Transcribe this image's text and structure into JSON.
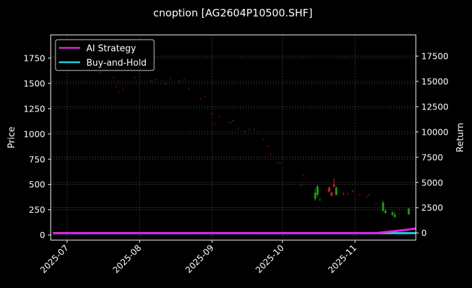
{
  "chart_data": {
    "type": "candlestick+line",
    "title": "cnoption [AG2604P10500.SHF]",
    "xlabel": "",
    "ylabel": "Price",
    "ylabel_right": "Return",
    "x_ticks": [
      "2025-07",
      "2025-08",
      "2025-09",
      "2025-10",
      "2025-11"
    ],
    "y_ticks_left": [
      0,
      250,
      500,
      750,
      1000,
      1250,
      1500,
      1750
    ],
    "y_ticks_right": [
      0,
      2500,
      5000,
      7500,
      10000,
      12500,
      15000,
      17500
    ],
    "ylim_left": [
      -50,
      1980
    ],
    "ylim_right": [
      -700,
      19600
    ],
    "grid": true,
    "legend_position": "upper left",
    "legend": [
      {
        "label": "AI Strategy",
        "color": "#e81ee8"
      },
      {
        "label": "Buy-and-Hold",
        "color": "#22d3e6"
      }
    ],
    "colors": {
      "up": "#18a018",
      "down": "#e01818",
      "background": "#000000",
      "grid": "#555555"
    },
    "candles": [
      {
        "date": "2025-07-15",
        "open": 1610,
        "high": 1620,
        "low": 1600,
        "close": 1605,
        "dir": "down"
      },
      {
        "date": "2025-07-21",
        "open": 1560,
        "high": 1565,
        "low": 1550,
        "close": 1555,
        "dir": "down"
      },
      {
        "date": "2025-07-22",
        "open": 1470,
        "high": 1480,
        "low": 1460,
        "close": 1465,
        "dir": "down"
      },
      {
        "date": "2025-07-23",
        "open": 1420,
        "high": 1430,
        "low": 1410,
        "close": 1415,
        "dir": "down"
      },
      {
        "date": "2025-07-25",
        "open": 1440,
        "high": 1450,
        "low": 1430,
        "close": 1435,
        "dir": "down"
      },
      {
        "date": "2025-07-28",
        "open": 1640,
        "high": 1650,
        "low": 1630,
        "close": 1635,
        "dir": "down"
      },
      {
        "date": "2025-07-30",
        "open": 1560,
        "high": 1570,
        "low": 1550,
        "close": 1555,
        "dir": "down"
      },
      {
        "date": "2025-08-01",
        "open": 1600,
        "high": 1610,
        "low": 1590,
        "close": 1595,
        "dir": "down"
      },
      {
        "date": "2025-08-06",
        "open": 1520,
        "high": 1530,
        "low": 1510,
        "close": 1515,
        "dir": "down"
      },
      {
        "date": "2025-08-08",
        "open": 1540,
        "high": 1550,
        "low": 1530,
        "close": 1535,
        "dir": "down"
      },
      {
        "date": "2025-08-12",
        "open": 1500,
        "high": 1510,
        "low": 1490,
        "close": 1495,
        "dir": "down"
      },
      {
        "date": "2025-08-14",
        "open": 1550,
        "high": 1560,
        "low": 1540,
        "close": 1545,
        "dir": "down"
      },
      {
        "date": "2025-08-18",
        "open": 1520,
        "high": 1530,
        "low": 1510,
        "close": 1515,
        "dir": "down"
      },
      {
        "date": "2025-08-20",
        "open": 1540,
        "high": 1550,
        "low": 1530,
        "close": 1535,
        "dir": "down"
      },
      {
        "date": "2025-08-22",
        "open": 1450,
        "high": 1460,
        "low": 1440,
        "close": 1445,
        "dir": "down"
      },
      {
        "date": "2025-08-27",
        "open": 1350,
        "high": 1360,
        "low": 1340,
        "close": 1345,
        "dir": "down"
      },
      {
        "date": "2025-08-29",
        "open": 1370,
        "high": 1380,
        "low": 1360,
        "close": 1365,
        "dir": "down"
      },
      {
        "date": "2025-09-01",
        "open": 1200,
        "high": 1210,
        "low": 1190,
        "close": 1195,
        "dir": "down"
      },
      {
        "date": "2025-09-02",
        "open": 1100,
        "high": 1110,
        "low": 1090,
        "close": 1095,
        "dir": "down"
      },
      {
        "date": "2025-09-04",
        "open": 1170,
        "high": 1180,
        "low": 1160,
        "close": 1165,
        "dir": "down"
      },
      {
        "date": "2025-09-08",
        "open": 1120,
        "high": 1125,
        "low": 1110,
        "close": 1115,
        "dir": "down"
      },
      {
        "date": "2025-09-09",
        "open": 1115,
        "high": 1120,
        "low": 1105,
        "close": 1110,
        "dir": "down"
      },
      {
        "date": "2025-09-10",
        "open": 1130,
        "high": 1140,
        "low": 1120,
        "close": 1135,
        "dir": "up"
      },
      {
        "date": "2025-09-12",
        "open": 1050,
        "high": 1060,
        "low": 1040,
        "close": 1045,
        "dir": "down"
      },
      {
        "date": "2025-09-15",
        "open": 1030,
        "high": 1040,
        "low": 1020,
        "close": 1025,
        "dir": "down"
      },
      {
        "date": "2025-09-17",
        "open": 1050,
        "high": 1060,
        "low": 1040,
        "close": 1045,
        "dir": "down"
      },
      {
        "date": "2025-09-19",
        "open": 1050,
        "high": 1055,
        "low": 1040,
        "close": 1045,
        "dir": "down"
      },
      {
        "date": "2025-09-23",
        "open": 950,
        "high": 960,
        "low": 940,
        "close": 945,
        "dir": "down"
      },
      {
        "date": "2025-09-25",
        "open": 880,
        "high": 890,
        "low": 870,
        "close": 875,
        "dir": "down"
      },
      {
        "date": "2025-09-26",
        "open": 800,
        "high": 810,
        "low": 790,
        "close": 795,
        "dir": "down"
      },
      {
        "date": "2025-09-29",
        "open": 720,
        "high": 730,
        "low": 710,
        "close": 715,
        "dir": "down"
      },
      {
        "date": "2025-09-30",
        "open": 715,
        "high": 720,
        "low": 700,
        "close": 705,
        "dir": "down"
      },
      {
        "date": "2025-10-10",
        "open": 590,
        "high": 600,
        "low": 580,
        "close": 585,
        "dir": "down"
      },
      {
        "date": "2025-10-09",
        "open": 490,
        "high": 500,
        "low": 480,
        "close": 495,
        "dir": "up"
      },
      {
        "date": "2025-10-15",
        "open": 360,
        "high": 460,
        "low": 340,
        "close": 420,
        "dir": "up"
      },
      {
        "date": "2025-10-16",
        "open": 400,
        "high": 500,
        "low": 380,
        "close": 480,
        "dir": "up"
      },
      {
        "date": "2025-10-17",
        "open": 340,
        "high": 370,
        "low": 330,
        "close": 360,
        "dir": "up"
      },
      {
        "date": "2025-10-21",
        "open": 470,
        "high": 480,
        "low": 420,
        "close": 430,
        "dir": "down"
      },
      {
        "date": "2025-10-22",
        "open": 420,
        "high": 430,
        "low": 380,
        "close": 390,
        "dir": "down"
      },
      {
        "date": "2025-10-23",
        "open": 500,
        "high": 560,
        "low": 470,
        "close": 480,
        "dir": "down"
      },
      {
        "date": "2025-10-24",
        "open": 400,
        "high": 480,
        "low": 390,
        "close": 470,
        "dir": "up"
      },
      {
        "date": "2025-10-27",
        "open": 420,
        "high": 430,
        "low": 390,
        "close": 395,
        "dir": "down"
      },
      {
        "date": "2025-10-29",
        "open": 410,
        "high": 420,
        "low": 400,
        "close": 405,
        "dir": "down"
      },
      {
        "date": "2025-10-31",
        "open": 440,
        "high": 450,
        "low": 420,
        "close": 425,
        "dir": "down"
      },
      {
        "date": "2025-11-03",
        "open": 400,
        "high": 410,
        "low": 390,
        "close": 395,
        "dir": "down"
      },
      {
        "date": "2025-11-06",
        "open": 380,
        "high": 390,
        "low": 370,
        "close": 375,
        "dir": "down"
      },
      {
        "date": "2025-11-07",
        "open": 395,
        "high": 405,
        "low": 385,
        "close": 400,
        "dir": "up"
      },
      {
        "date": "2025-11-10",
        "open": 310,
        "high": 320,
        "low": 300,
        "close": 305,
        "dir": "down"
      },
      {
        "date": "2025-11-13",
        "open": 240,
        "high": 340,
        "low": 230,
        "close": 320,
        "dir": "up"
      },
      {
        "date": "2025-11-14",
        "open": 220,
        "high": 260,
        "low": 210,
        "close": 240,
        "dir": "up"
      },
      {
        "date": "2025-11-17",
        "open": 200,
        "high": 240,
        "low": 190,
        "close": 220,
        "dir": "up"
      },
      {
        "date": "2025-11-18",
        "open": 180,
        "high": 230,
        "low": 170,
        "close": 200,
        "dir": "up"
      },
      {
        "date": "2025-11-20",
        "open": 210,
        "high": 220,
        "low": 200,
        "close": 215,
        "dir": "down"
      },
      {
        "date": "2025-11-24",
        "open": 205,
        "high": 270,
        "low": 200,
        "close": 260,
        "dir": "up"
      }
    ],
    "series": [
      {
        "name": "AI Strategy",
        "axis": "right",
        "color": "#e81ee8",
        "x": [
          "2025-06-25",
          "2025-11-10",
          "2025-11-18",
          "2025-11-24",
          "2025-11-27"
        ],
        "values": [
          0,
          0,
          200,
          350,
          450
        ]
      },
      {
        "name": "Buy-and-Hold",
        "axis": "right",
        "color": "#22d3e6",
        "x": [
          "2025-06-25",
          "2025-11-27"
        ],
        "values": [
          0,
          0
        ]
      }
    ],
    "x_range": [
      "2025-06-24",
      "2025-11-27"
    ]
  }
}
